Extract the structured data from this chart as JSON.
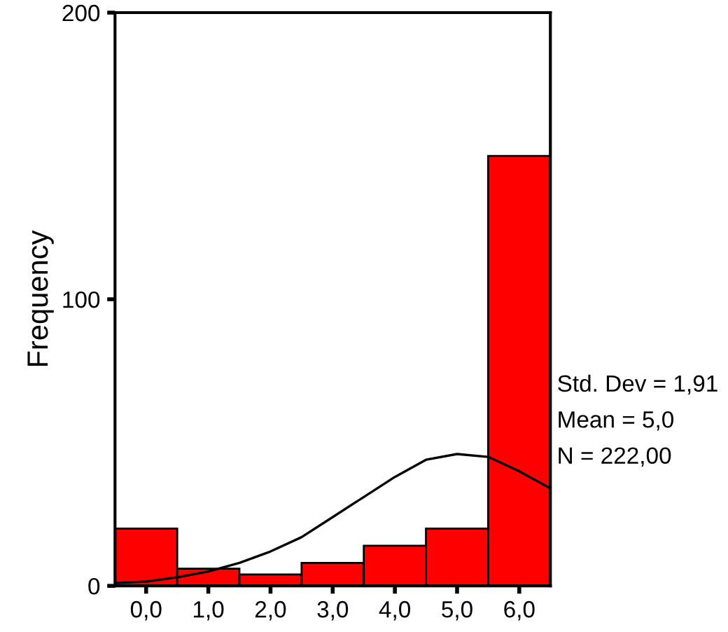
{
  "chart_data": {
    "type": "histogram",
    "ylabel": "Frequency",
    "bins": [
      -0.5,
      0.5,
      1.5,
      2.5,
      3.5,
      4.5,
      5.5,
      6.5
    ],
    "values": [
      20,
      6,
      4,
      8,
      14,
      20,
      150
    ],
    "color": "#ff0000",
    "series": [
      {
        "type": "line",
        "color": "#000000",
        "x": [
          -0.5,
          0,
          0.5,
          1,
          1.5,
          2,
          2.5,
          3,
          3.5,
          4,
          4.5,
          5,
          5.5,
          6,
          6.5
        ],
        "values": [
          1,
          1.5,
          3,
          5,
          8,
          12,
          17,
          24,
          31,
          38,
          44,
          46,
          45,
          40,
          34
        ]
      }
    ],
    "xlim": [
      -0.5,
      6.5
    ],
    "xticks": [
      {
        "value": 0,
        "label": "0,0"
      },
      {
        "value": 1,
        "label": "1,0"
      },
      {
        "value": 2,
        "label": "2,0"
      },
      {
        "value": 3,
        "label": "3,0"
      },
      {
        "value": 4,
        "label": "4,0"
      },
      {
        "value": 5,
        "label": "5,0"
      },
      {
        "value": 6,
        "label": "6,0"
      }
    ],
    "ylim": [
      0,
      200
    ],
    "yticks": [
      0,
      100,
      200
    ],
    "grid": false,
    "legend": false,
    "annotations": [
      "Std. Dev = 1,91",
      "Mean = 5,0",
      "N = 222,00"
    ]
  }
}
